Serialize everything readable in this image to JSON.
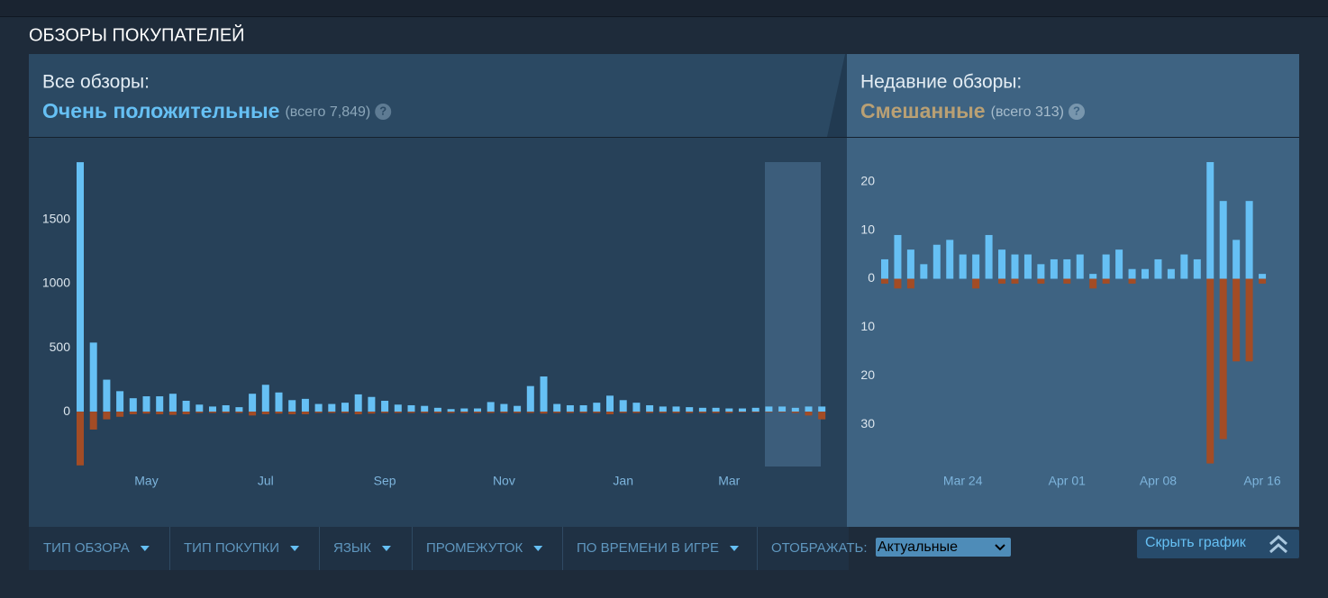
{
  "header": {
    "title": "ОБЗОРЫ ПОКУПАТЕЛЕЙ"
  },
  "summary": [
    {
      "label": "Все обзоры:",
      "rating": "Очень положительные",
      "total": "(всего 7,849)",
      "help": "?"
    },
    {
      "label": "Недавние обзоры:",
      "rating": "Смешанные",
      "total": "(всего 313)",
      "help": "?"
    }
  ],
  "chart_data": [
    {
      "type": "bar",
      "categories": [
        null,
        null,
        null,
        null,
        null,
        "May",
        null,
        null,
        null,
        null,
        null,
        null,
        null,
        null,
        "Jul",
        null,
        null,
        null,
        null,
        null,
        null,
        null,
        null,
        "Sep",
        null,
        null,
        null,
        null,
        null,
        null,
        null,
        null,
        "Nov",
        null,
        null,
        null,
        null,
        null,
        null,
        null,
        null,
        "Jan",
        null,
        null,
        null,
        null,
        null,
        null,
        null,
        "Mar",
        null,
        null,
        null,
        null,
        null,
        null,
        null
      ],
      "series": [
        {
          "color": "#66c0f4",
          "values": [
            1950,
            540,
            250,
            160,
            105,
            120,
            120,
            140,
            85,
            55,
            40,
            50,
            35,
            140,
            210,
            150,
            90,
            100,
            60,
            60,
            70,
            135,
            115,
            85,
            55,
            50,
            45,
            30,
            20,
            25,
            25,
            75,
            60,
            45,
            200,
            275,
            60,
            50,
            50,
            70,
            125,
            90,
            70,
            50,
            40,
            40,
            35,
            30,
            30,
            25,
            25,
            30,
            40,
            40,
            30,
            40,
            40
          ]
        },
        {
          "color": "#a34c25",
          "values": [
            -420,
            -140,
            -60,
            -40,
            -20,
            -15,
            -20,
            -25,
            -20,
            -10,
            -10,
            -10,
            -10,
            -30,
            -20,
            -15,
            -20,
            -20,
            -10,
            -10,
            -10,
            -20,
            -15,
            -10,
            -10,
            -10,
            -10,
            -10,
            -10,
            -10,
            -10,
            -10,
            -10,
            -10,
            -10,
            -15,
            -10,
            -10,
            -10,
            -10,
            -20,
            -10,
            -10,
            -10,
            -10,
            -10,
            -10,
            -10,
            -10,
            -10,
            -5,
            -5,
            -5,
            -5,
            -10,
            -30,
            -60
          ]
        }
      ],
      "ylim": [
        -450,
        2000
      ],
      "yticks": [
        0,
        500,
        1000,
        1500
      ]
    },
    {
      "type": "bar",
      "categories": [
        null,
        null,
        null,
        null,
        null,
        null,
        "Mar 24",
        null,
        null,
        null,
        null,
        null,
        null,
        null,
        "Apr 01",
        null,
        null,
        null,
        null,
        null,
        null,
        "Apr 08",
        null,
        null,
        null,
        null,
        null,
        null,
        null,
        "Apr 16"
      ],
      "series": [
        {
          "color": "#66c0f4",
          "values": [
            4,
            9,
            6,
            3,
            7,
            8,
            5,
            5,
            9,
            6,
            5,
            5,
            3,
            4,
            4,
            5,
            1,
            5,
            6,
            2,
            2,
            4,
            2,
            5,
            4,
            24,
            16,
            8,
            16,
            1
          ]
        },
        {
          "color": "#a34c25",
          "values": [
            -1,
            -2,
            -2,
            0,
            0,
            0,
            0,
            -2,
            0,
            -1,
            -1,
            0,
            -1,
            0,
            -1,
            0,
            -2,
            -1,
            0,
            -1,
            0,
            0,
            0,
            0,
            0,
            -38,
            -33,
            -17,
            -17,
            -1
          ]
        }
      ],
      "ylim": [
        -39,
        24
      ],
      "yticks": [
        0,
        10,
        20,
        {
          "value": -10,
          "label": "10"
        },
        {
          "value": -20,
          "label": "20"
        },
        {
          "value": -30,
          "label": "30"
        }
      ]
    }
  ],
  "filters": [
    "ТИП ОБЗОРА",
    "ТИП ПОКУПКИ",
    "ЯЗЫК",
    "ПРОМЕЖУТОК",
    "ПО ВРЕМЕНИ В ИГРЕ"
  ],
  "display": {
    "label": "ОТОБРАЖАТЬ:",
    "value": "Актуальные"
  },
  "toggle_button": "Скрыть график"
}
